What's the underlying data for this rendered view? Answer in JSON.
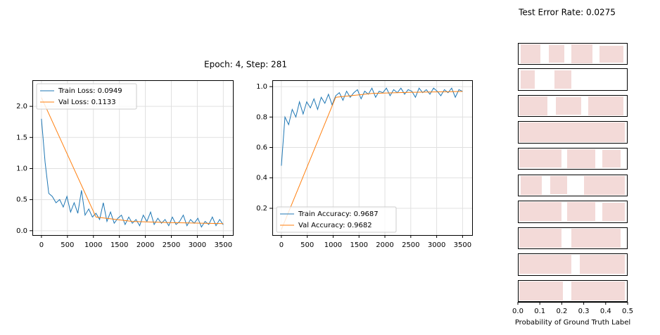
{
  "title": "Test Error Rate: 0.0275",
  "subtitle": "Epoch: 4, Step: 281",
  "chart_data": [
    {
      "type": "line",
      "grid": true,
      "legend": "upper left",
      "xlim": [
        -175,
        3685
      ],
      "xticks": [
        0,
        500,
        1000,
        1500,
        2000,
        2500,
        3000,
        3500
      ],
      "ylim": [
        -0.07,
        2.42
      ],
      "yticks": [
        {
          "value": 0,
          "label": "0.0"
        },
        0.5,
        {
          "value": 1,
          "label": "1.0"
        },
        1.5,
        {
          "value": 2,
          "label": "2.0"
        }
      ],
      "series": [
        {
          "name": "Train Loss: 0.0949",
          "color": "#1f77b4",
          "x": [
            0,
            70,
            140,
            210,
            280,
            350,
            420,
            490,
            560,
            630,
            700,
            770,
            840,
            910,
            980,
            1050,
            1120,
            1190,
            1260,
            1330,
            1400,
            1470,
            1540,
            1610,
            1680,
            1750,
            1820,
            1890,
            1960,
            2030,
            2100,
            2170,
            2240,
            2310,
            2380,
            2450,
            2520,
            2590,
            2660,
            2730,
            2800,
            2870,
            2940,
            3010,
            3080,
            3150,
            3220,
            3290,
            3360,
            3430,
            3500
          ],
          "values": [
            1.8,
            1.1,
            0.6,
            0.55,
            0.45,
            0.5,
            0.38,
            0.55,
            0.3,
            0.45,
            0.28,
            0.65,
            0.25,
            0.35,
            0.22,
            0.28,
            0.18,
            0.45,
            0.15,
            0.3,
            0.12,
            0.2,
            0.25,
            0.1,
            0.22,
            0.12,
            0.18,
            0.08,
            0.25,
            0.15,
            0.3,
            0.1,
            0.2,
            0.12,
            0.18,
            0.08,
            0.22,
            0.1,
            0.15,
            0.25,
            0.08,
            0.18,
            0.12,
            0.2,
            0.06,
            0.15,
            0.1,
            0.22,
            0.08,
            0.18,
            0.0949
          ]
        },
        {
          "name": "Val Loss: 0.1133",
          "color": "#ff7f0e",
          "x": [
            0,
            1050,
            1750,
            2450,
            3150,
            3500
          ],
          "values": [
            2.14,
            0.22,
            0.15,
            0.13,
            0.12,
            0.1133
          ]
        }
      ]
    },
    {
      "type": "line",
      "grid": true,
      "legend": "lower left",
      "xlim": [
        -175,
        3685
      ],
      "xticks": [
        0,
        500,
        1000,
        1500,
        2000,
        2500,
        3000,
        3500
      ],
      "ylim": [
        0.024,
        1.042
      ],
      "yticks": [
        0.2,
        0.4,
        0.6,
        0.8,
        {
          "value": 1,
          "label": "1.0"
        }
      ],
      "series": [
        {
          "name": "Train Accuracy: 0.9687",
          "color": "#1f77b4",
          "x": [
            0,
            70,
            140,
            210,
            280,
            350,
            420,
            490,
            560,
            630,
            700,
            770,
            840,
            910,
            980,
            1050,
            1120,
            1190,
            1260,
            1330,
            1400,
            1470,
            1540,
            1610,
            1680,
            1750,
            1820,
            1890,
            1960,
            2030,
            2100,
            2170,
            2240,
            2310,
            2380,
            2450,
            2520,
            2590,
            2660,
            2730,
            2800,
            2870,
            2940,
            3010,
            3080,
            3150,
            3220,
            3290,
            3360,
            3430,
            3500
          ],
          "values": [
            0.48,
            0.8,
            0.75,
            0.85,
            0.8,
            0.9,
            0.82,
            0.9,
            0.86,
            0.92,
            0.85,
            0.93,
            0.89,
            0.95,
            0.88,
            0.94,
            0.96,
            0.91,
            0.97,
            0.93,
            0.96,
            0.98,
            0.92,
            0.97,
            0.95,
            0.99,
            0.93,
            0.97,
            0.96,
            0.99,
            0.94,
            0.98,
            0.96,
            0.99,
            0.95,
            0.98,
            0.97,
            0.93,
            0.99,
            0.96,
            0.98,
            0.95,
            0.99,
            0.97,
            0.94,
            0.98,
            0.96,
            0.99,
            0.93,
            0.98,
            0.9687
          ]
        },
        {
          "name": "Val Accuracy: 0.9682",
          "color": "#ff7f0e",
          "x": [
            0,
            1050,
            1750,
            2450,
            3150,
            3500
          ],
          "values": [
            0.06,
            0.93,
            0.955,
            0.962,
            0.966,
            0.9682
          ]
        }
      ]
    },
    {
      "type": "strip",
      "xlabel": "Probability of Ground Truth Label",
      "xlim": [
        0,
        0.5
      ],
      "xticks": [
        {
          "value": 0,
          "label": "0.0"
        },
        0.1,
        0.2,
        0.3,
        0.4,
        0.5
      ]
    }
  ]
}
